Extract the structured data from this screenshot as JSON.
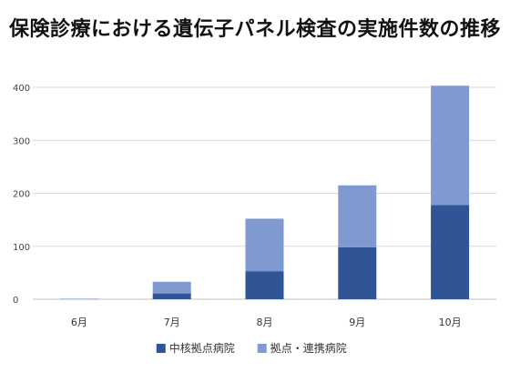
{
  "chart_data": {
    "type": "bar",
    "stacked": true,
    "title": "保険診療における遺伝子パネル検査の実施件数の推移",
    "xlabel": "",
    "ylabel": "",
    "categories": [
      "6月",
      "7月",
      "8月",
      "9月",
      "10月"
    ],
    "series": [
      {
        "name": "中核拠点病院",
        "color": "#2f5597",
        "values": [
          0,
          11,
          53,
          98,
          178
        ]
      },
      {
        "name": "拠点・連携病院",
        "color": "#7f99d1",
        "values": [
          1,
          22,
          99,
          117,
          225
        ]
      }
    ],
    "ylim": [
      0,
      400
    ],
    "yticks": [
      0,
      100,
      200,
      300,
      400
    ],
    "grid": true,
    "legend_position": "bottom"
  }
}
